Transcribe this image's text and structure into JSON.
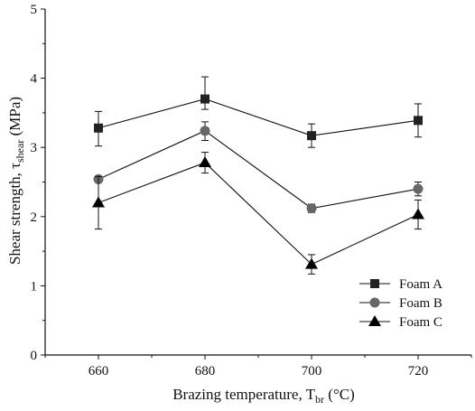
{
  "chart_data": {
    "type": "line",
    "x": [
      660,
      680,
      700,
      720
    ],
    "xticks": [
      "660",
      "680",
      "700",
      "720"
    ],
    "yticks": [
      "0",
      "1",
      "2",
      "3",
      "4",
      "5"
    ],
    "xlim": [
      650,
      730
    ],
    "ylim": [
      0,
      5
    ],
    "xlabel": {
      "main": "Brazing temperature, T",
      "sub": "br",
      "unit": " (°C)"
    },
    "ylabel": {
      "main": "Shear strength, τ",
      "sub": "shear",
      "unit": " (MPa)"
    },
    "grid": false,
    "legend_position": "bottom-right",
    "series": [
      {
        "name": "Foam A",
        "marker": "square",
        "color": "#222222",
        "values": [
          3.28,
          3.7,
          3.17,
          3.39
        ],
        "error_low": [
          3.02,
          3.55,
          3.0,
          3.15
        ],
        "error_high": [
          3.52,
          4.02,
          3.34,
          3.63
        ]
      },
      {
        "name": "Foam B",
        "marker": "circle",
        "color": "#666666",
        "values": [
          2.54,
          3.24,
          2.12,
          2.4
        ],
        "error_low": [
          2.5,
          3.1,
          2.06,
          2.3
        ],
        "error_high": [
          2.58,
          3.37,
          2.18,
          2.5
        ]
      },
      {
        "name": "Foam C",
        "marker": "triangle",
        "color": "#000000",
        "values": [
          2.2,
          2.78,
          1.31,
          2.03
        ],
        "error_low": [
          1.82,
          2.63,
          1.17,
          1.82
        ],
        "error_high": [
          2.58,
          2.93,
          1.45,
          2.24
        ]
      }
    ]
  }
}
